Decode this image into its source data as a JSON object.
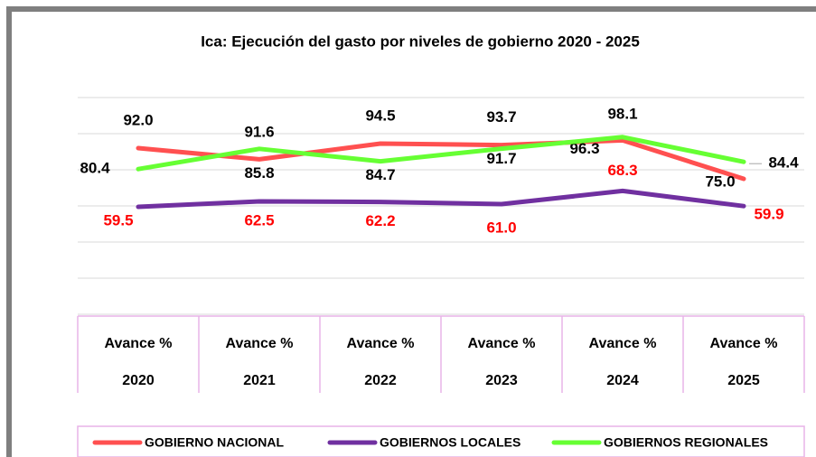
{
  "chart_data": {
    "type": "line",
    "title": "Ica: Ejecución del gasto por niveles de gobierno 2020 - 2025",
    "categories": [
      [
        "Avance %",
        "2020"
      ],
      [
        "Avance %",
        "2021"
      ],
      [
        "Avance %",
        "2022"
      ],
      [
        "Avance %",
        "2023"
      ],
      [
        "Avance %",
        "2024"
      ],
      [
        "Avance %",
        "2025"
      ]
    ],
    "ylim": [
      0,
      120
    ],
    "yticks": [
      0,
      20,
      40,
      60,
      80,
      100,
      120
    ],
    "grid": true,
    "legend": "bottom",
    "series": [
      {
        "name": "GOBIERNO NACIONAL",
        "color": "#ff5050",
        "label_color": "#000000",
        "values": [
          92.0,
          85.8,
          94.5,
          93.7,
          96.3,
          75.0
        ],
        "value_labels": [
          "92.0",
          "85.8",
          "94.5",
          "93.7",
          "96.3",
          "75.0"
        ]
      },
      {
        "name": "GOBIERNOS LOCALES",
        "color": "#7030a0",
        "label_color": "#ff0000",
        "values": [
          59.5,
          62.5,
          62.2,
          61.0,
          68.3,
          59.9
        ],
        "value_labels": [
          "59.5",
          "62.5",
          "62.2",
          "61.0",
          "68.3",
          "59.9"
        ]
      },
      {
        "name": "GOBIERNOS REGIONALES",
        "color": "#66ff33",
        "label_color": "#000000",
        "values": [
          80.4,
          91.6,
          84.7,
          91.7,
          98.1,
          84.4
        ],
        "value_labels": [
          "80.4",
          "91.6",
          "84.7",
          "91.7",
          "98.1",
          "84.4"
        ]
      }
    ]
  }
}
